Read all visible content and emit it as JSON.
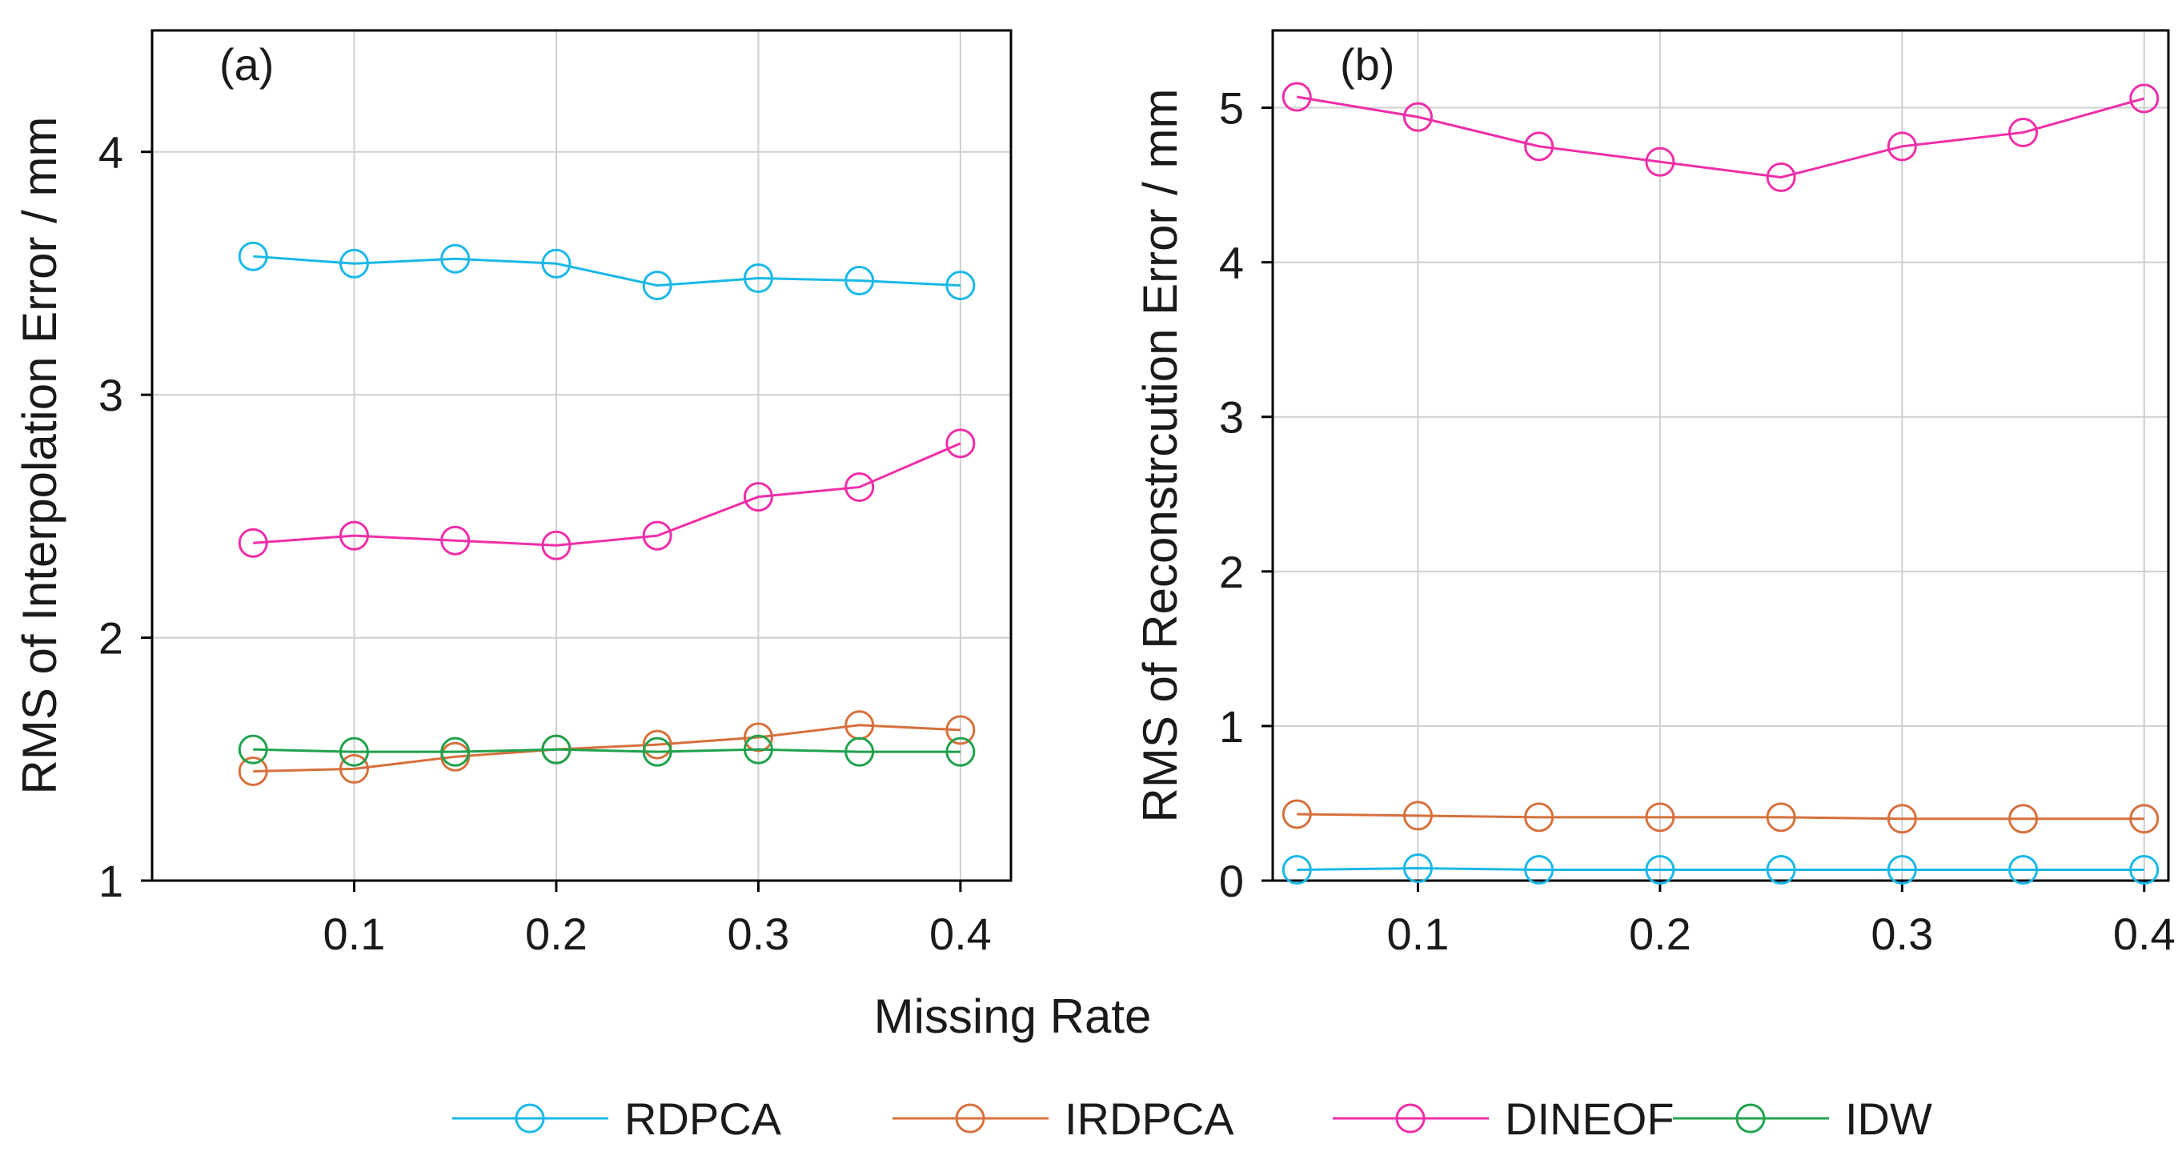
{
  "chart_data": [
    {
      "type": "line",
      "panel_label": "(a)",
      "xlabel": "Missing Rate",
      "ylabel": "RMS of Interpolation Error / mm",
      "x": [
        0.05,
        0.1,
        0.15,
        0.2,
        0.25,
        0.3,
        0.35,
        0.4
      ],
      "xlim": [
        0.0,
        0.425
      ],
      "ylim": [
        1.0,
        4.5
      ],
      "xticks": [
        0.1,
        0.2,
        0.3,
        0.4
      ],
      "xtick_labels": [
        "0.1",
        "0.2",
        "0.3",
        "0.4"
      ],
      "yticks": [
        1,
        2,
        3,
        4
      ],
      "ytick_labels": [
        "1",
        "2",
        "3",
        "4"
      ],
      "grid": true,
      "series": [
        {
          "name": "RDPCA",
          "color": "#1ab8e8",
          "values": [
            3.57,
            3.54,
            3.56,
            3.54,
            3.45,
            3.48,
            3.47,
            3.45
          ]
        },
        {
          "name": "IRDPCA",
          "color": "#d7703c",
          "values": [
            1.45,
            1.46,
            1.51,
            1.54,
            1.56,
            1.59,
            1.64,
            1.62
          ]
        },
        {
          "name": "DINEOF",
          "color": "#ef2ea8",
          "values": [
            2.39,
            2.42,
            2.4,
            2.38,
            2.42,
            2.58,
            2.62,
            2.8
          ]
        },
        {
          "name": "IDW",
          "color": "#20a24c",
          "values": [
            1.54,
            1.53,
            1.53,
            1.54,
            1.53,
            1.54,
            1.53,
            1.53
          ]
        }
      ]
    },
    {
      "type": "line",
      "panel_label": "(b)",
      "xlabel": "",
      "ylabel": "RMS of Reconstrcution Error / mm",
      "x": [
        0.05,
        0.1,
        0.15,
        0.2,
        0.25,
        0.3,
        0.35,
        0.4
      ],
      "xlim": [
        0.04,
        0.41
      ],
      "ylim": [
        0.0,
        5.5
      ],
      "xticks": [
        0.1,
        0.2,
        0.3,
        0.4
      ],
      "xtick_labels": [
        "0.1",
        "0.2",
        "0.3",
        "0.4"
      ],
      "yticks": [
        0,
        1,
        2,
        3,
        4,
        5
      ],
      "ytick_labels": [
        "0",
        "1",
        "2",
        "3",
        "4",
        "5"
      ],
      "grid": true,
      "series": [
        {
          "name": "RDPCA",
          "color": "#1ab8e8",
          "values": [
            0.07,
            0.08,
            0.07,
            0.07,
            0.07,
            0.07,
            0.07,
            0.07
          ]
        },
        {
          "name": "IRDPCA",
          "color": "#d7703c",
          "values": [
            0.43,
            0.42,
            0.41,
            0.41,
            0.41,
            0.4,
            0.4,
            0.4
          ]
        },
        {
          "name": "DINEOF",
          "color": "#ef2ea8",
          "values": [
            5.07,
            4.94,
            4.75,
            4.65,
            4.55,
            4.75,
            4.84,
            5.06
          ]
        }
      ]
    }
  ],
  "legend": {
    "position": "bottom-center",
    "items": [
      {
        "name": "RDPCA",
        "color": "#1ab8e8"
      },
      {
        "name": "IRDPCA",
        "color": "#d7703c"
      },
      {
        "name": "DINEOF",
        "color": "#ef2ea8"
      },
      {
        "name": "IDW",
        "color": "#20a24c"
      }
    ]
  },
  "style": {
    "frame_color": "#000000",
    "grid_color": "#cfcfcf",
    "marker": "open-circle"
  }
}
